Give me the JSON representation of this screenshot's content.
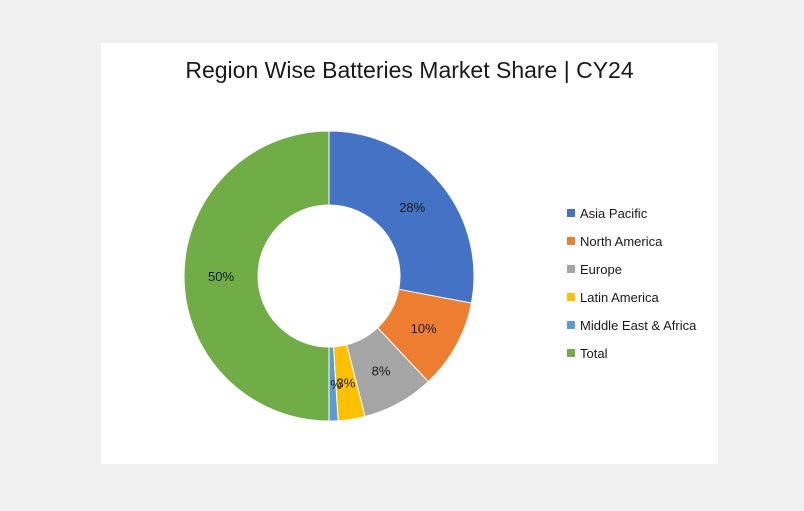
{
  "chart_data": {
    "type": "pie",
    "variant": "donut",
    "title": "Region Wise Batteries Market Share | CY24",
    "categories": [
      "Asia Pacific",
      "North America",
      "Europe",
      "Latin America",
      "Middle East & Africa",
      "Total"
    ],
    "values": [
      28,
      10,
      8,
      3,
      1,
      50
    ],
    "labels": [
      "28%",
      "10%",
      "8%",
      "3%",
      "1%",
      "50%"
    ],
    "colors": [
      "#4472c4",
      "#ed7d31",
      "#a5a5a5",
      "#ffc000",
      "#5b9bd5",
      "#70ad47"
    ],
    "legend_position": "right"
  }
}
